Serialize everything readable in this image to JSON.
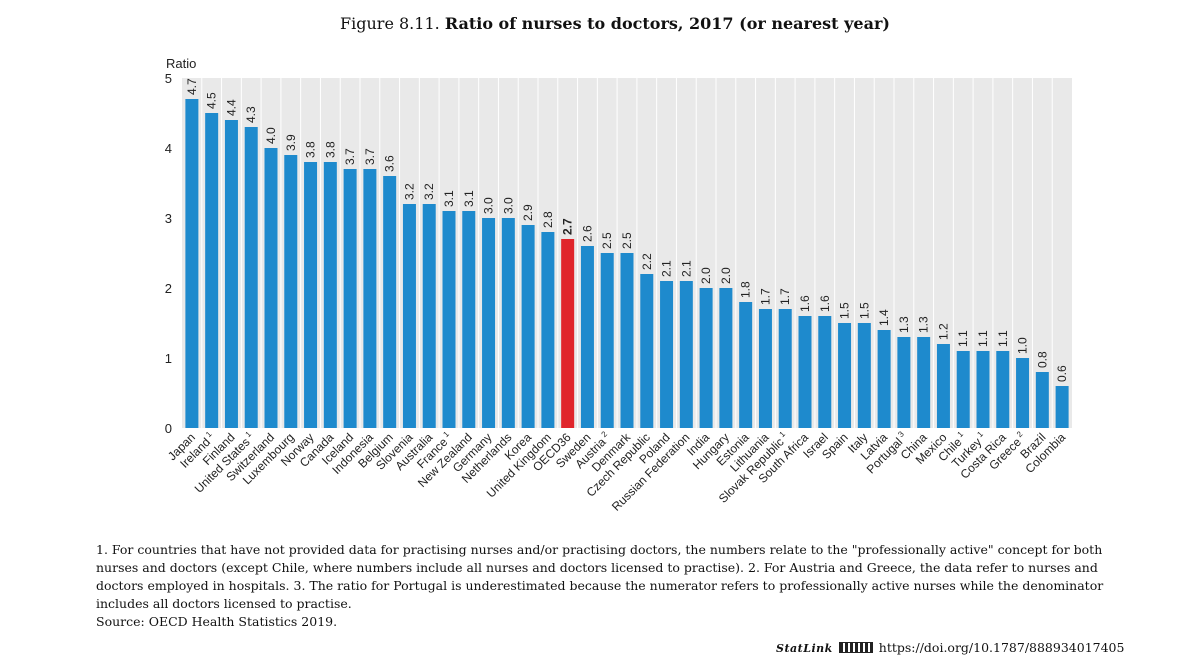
{
  "figure": {
    "prefix": "Figure 8.11.",
    "title": "Ratio of nurses to doctors, 2017 (or nearest year)"
  },
  "chart_data": {
    "type": "bar",
    "ylabel": "Ratio",
    "ylim": [
      0,
      5
    ],
    "yticks": [
      0,
      1,
      2,
      3,
      4,
      5
    ],
    "grid": "vertical bands",
    "colors": {
      "bar": "#1E8ACD",
      "highlight": "#E0252B",
      "background": "#E9E9E9"
    },
    "highlight": "OECD36",
    "categories": [
      "Japan",
      "Ireland",
      "Finland",
      "United States",
      "Switzerland",
      "Luxembourg",
      "Norway",
      "Canada",
      "Iceland",
      "Indonesia",
      "Belgium",
      "Slovenia",
      "Australia",
      "France",
      "New Zealand",
      "Germany",
      "Netherlands",
      "Korea",
      "United Kingdom",
      "OECD36",
      "Sweden",
      "Austria",
      "Denmark",
      "Czech Republic",
      "Poland",
      "Russian Federation",
      "India",
      "Hungary",
      "Estonia",
      "Lithuania",
      "Slovak Republic",
      "South Africa",
      "Israel",
      "Spain",
      "Italy",
      "Latvia",
      "Portugal",
      "China",
      "Mexico",
      "Chile",
      "Turkey",
      "Costa Rica",
      "Greece",
      "Brazil",
      "Colombia"
    ],
    "footnote_marks": [
      "",
      "1",
      "",
      "1",
      "",
      "",
      "",
      "",
      "",
      "",
      "",
      "",
      "",
      "1",
      "",
      "",
      "",
      "",
      "",
      "",
      "",
      "2",
      "",
      "",
      "",
      "",
      "",
      "",
      "",
      "",
      "1",
      "",
      "",
      "",
      "",
      "",
      "3",
      "",
      "",
      "1",
      "1",
      "",
      "2",
      "",
      ""
    ],
    "values": [
      4.7,
      4.5,
      4.4,
      4.3,
      4.0,
      3.9,
      3.8,
      3.8,
      3.7,
      3.7,
      3.6,
      3.2,
      3.2,
      3.1,
      3.1,
      3.0,
      3.0,
      2.9,
      2.8,
      2.7,
      2.6,
      2.5,
      2.5,
      2.2,
      2.1,
      2.1,
      2.0,
      2.0,
      1.8,
      1.7,
      1.7,
      1.6,
      1.6,
      1.5,
      1.5,
      1.4,
      1.3,
      1.3,
      1.2,
      1.1,
      1.1,
      1.1,
      1.0,
      0.8,
      0.6
    ],
    "value_labels": [
      "4.7",
      "4.5",
      "4.4",
      "4.3",
      "4.0",
      "3.9",
      "3.8",
      "3.8",
      "3.7",
      "3.7",
      "3.6",
      "3.2",
      "3.2",
      "3.1",
      "3.1",
      "3.0",
      "3.0",
      "2.9",
      "2.8",
      "2.7",
      "2.6",
      "2.5",
      "2.5",
      "2.2",
      "2.1",
      "2.1",
      "2.0",
      "2.0",
      "1.8",
      "1.7",
      "1.7",
      "1.6",
      "1.6",
      "1.5",
      "1.5",
      "1.4",
      "1.3",
      "1.3",
      "1.2",
      "1.1",
      "1.1",
      "1.1",
      "1.0",
      "0.8",
      "0.6"
    ]
  },
  "notes": {
    "text": "1. For countries that have not provided data for practising nurses and/or practising doctors, the numbers relate to the \"professionally active\" concept for both nurses and doctors (except Chile, where numbers include all nurses and doctors licensed to practise). 2. For Austria and Greece, the data refer to nurses and doctors employed in hospitals. 3. The ratio for Portugal is underestimated because the numerator refers to professionally active nurses while the denominator includes all doctors licensed to practise.",
    "source": "Source: OECD Health Statistics 2019."
  },
  "statlink": {
    "brand": "StatLink",
    "logo_icon": "oecd-statlink-logo-icon",
    "url": "https://doi.org/10.1787/888934017405"
  }
}
